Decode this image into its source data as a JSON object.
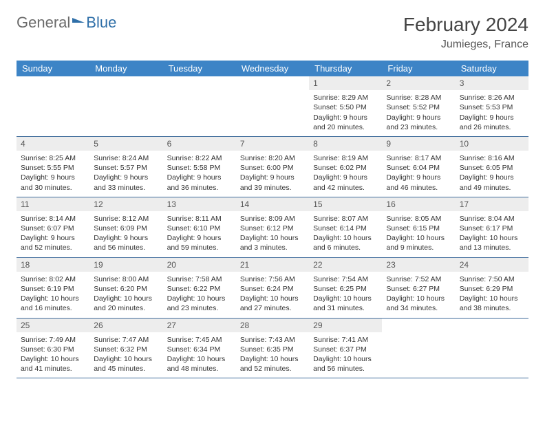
{
  "logo": {
    "part1": "General",
    "part2": "Blue"
  },
  "header": {
    "month": "February 2024",
    "location": "Jumieges, France"
  },
  "colors": {
    "header_bg": "#3d84c6",
    "header_text": "#ffffff",
    "daynum_bg": "#ededed",
    "border": "#3d6a9a",
    "title_text": "#444444",
    "body_text": "#333333"
  },
  "daynames": [
    "Sunday",
    "Monday",
    "Tuesday",
    "Wednesday",
    "Thursday",
    "Friday",
    "Saturday"
  ],
  "weeks": [
    [
      null,
      null,
      null,
      null,
      {
        "n": "1",
        "sr": "Sunrise: 8:29 AM",
        "ss": "Sunset: 5:50 PM",
        "d1": "Daylight: 9 hours",
        "d2": "and 20 minutes."
      },
      {
        "n": "2",
        "sr": "Sunrise: 8:28 AM",
        "ss": "Sunset: 5:52 PM",
        "d1": "Daylight: 9 hours",
        "d2": "and 23 minutes."
      },
      {
        "n": "3",
        "sr": "Sunrise: 8:26 AM",
        "ss": "Sunset: 5:53 PM",
        "d1": "Daylight: 9 hours",
        "d2": "and 26 minutes."
      }
    ],
    [
      {
        "n": "4",
        "sr": "Sunrise: 8:25 AM",
        "ss": "Sunset: 5:55 PM",
        "d1": "Daylight: 9 hours",
        "d2": "and 30 minutes."
      },
      {
        "n": "5",
        "sr": "Sunrise: 8:24 AM",
        "ss": "Sunset: 5:57 PM",
        "d1": "Daylight: 9 hours",
        "d2": "and 33 minutes."
      },
      {
        "n": "6",
        "sr": "Sunrise: 8:22 AM",
        "ss": "Sunset: 5:58 PM",
        "d1": "Daylight: 9 hours",
        "d2": "and 36 minutes."
      },
      {
        "n": "7",
        "sr": "Sunrise: 8:20 AM",
        "ss": "Sunset: 6:00 PM",
        "d1": "Daylight: 9 hours",
        "d2": "and 39 minutes."
      },
      {
        "n": "8",
        "sr": "Sunrise: 8:19 AM",
        "ss": "Sunset: 6:02 PM",
        "d1": "Daylight: 9 hours",
        "d2": "and 42 minutes."
      },
      {
        "n": "9",
        "sr": "Sunrise: 8:17 AM",
        "ss": "Sunset: 6:04 PM",
        "d1": "Daylight: 9 hours",
        "d2": "and 46 minutes."
      },
      {
        "n": "10",
        "sr": "Sunrise: 8:16 AM",
        "ss": "Sunset: 6:05 PM",
        "d1": "Daylight: 9 hours",
        "d2": "and 49 minutes."
      }
    ],
    [
      {
        "n": "11",
        "sr": "Sunrise: 8:14 AM",
        "ss": "Sunset: 6:07 PM",
        "d1": "Daylight: 9 hours",
        "d2": "and 52 minutes."
      },
      {
        "n": "12",
        "sr": "Sunrise: 8:12 AM",
        "ss": "Sunset: 6:09 PM",
        "d1": "Daylight: 9 hours",
        "d2": "and 56 minutes."
      },
      {
        "n": "13",
        "sr": "Sunrise: 8:11 AM",
        "ss": "Sunset: 6:10 PM",
        "d1": "Daylight: 9 hours",
        "d2": "and 59 minutes."
      },
      {
        "n": "14",
        "sr": "Sunrise: 8:09 AM",
        "ss": "Sunset: 6:12 PM",
        "d1": "Daylight: 10 hours",
        "d2": "and 3 minutes."
      },
      {
        "n": "15",
        "sr": "Sunrise: 8:07 AM",
        "ss": "Sunset: 6:14 PM",
        "d1": "Daylight: 10 hours",
        "d2": "and 6 minutes."
      },
      {
        "n": "16",
        "sr": "Sunrise: 8:05 AM",
        "ss": "Sunset: 6:15 PM",
        "d1": "Daylight: 10 hours",
        "d2": "and 9 minutes."
      },
      {
        "n": "17",
        "sr": "Sunrise: 8:04 AM",
        "ss": "Sunset: 6:17 PM",
        "d1": "Daylight: 10 hours",
        "d2": "and 13 minutes."
      }
    ],
    [
      {
        "n": "18",
        "sr": "Sunrise: 8:02 AM",
        "ss": "Sunset: 6:19 PM",
        "d1": "Daylight: 10 hours",
        "d2": "and 16 minutes."
      },
      {
        "n": "19",
        "sr": "Sunrise: 8:00 AM",
        "ss": "Sunset: 6:20 PM",
        "d1": "Daylight: 10 hours",
        "d2": "and 20 minutes."
      },
      {
        "n": "20",
        "sr": "Sunrise: 7:58 AM",
        "ss": "Sunset: 6:22 PM",
        "d1": "Daylight: 10 hours",
        "d2": "and 23 minutes."
      },
      {
        "n": "21",
        "sr": "Sunrise: 7:56 AM",
        "ss": "Sunset: 6:24 PM",
        "d1": "Daylight: 10 hours",
        "d2": "and 27 minutes."
      },
      {
        "n": "22",
        "sr": "Sunrise: 7:54 AM",
        "ss": "Sunset: 6:25 PM",
        "d1": "Daylight: 10 hours",
        "d2": "and 31 minutes."
      },
      {
        "n": "23",
        "sr": "Sunrise: 7:52 AM",
        "ss": "Sunset: 6:27 PM",
        "d1": "Daylight: 10 hours",
        "d2": "and 34 minutes."
      },
      {
        "n": "24",
        "sr": "Sunrise: 7:50 AM",
        "ss": "Sunset: 6:29 PM",
        "d1": "Daylight: 10 hours",
        "d2": "and 38 minutes."
      }
    ],
    [
      {
        "n": "25",
        "sr": "Sunrise: 7:49 AM",
        "ss": "Sunset: 6:30 PM",
        "d1": "Daylight: 10 hours",
        "d2": "and 41 minutes."
      },
      {
        "n": "26",
        "sr": "Sunrise: 7:47 AM",
        "ss": "Sunset: 6:32 PM",
        "d1": "Daylight: 10 hours",
        "d2": "and 45 minutes."
      },
      {
        "n": "27",
        "sr": "Sunrise: 7:45 AM",
        "ss": "Sunset: 6:34 PM",
        "d1": "Daylight: 10 hours",
        "d2": "and 48 minutes."
      },
      {
        "n": "28",
        "sr": "Sunrise: 7:43 AM",
        "ss": "Sunset: 6:35 PM",
        "d1": "Daylight: 10 hours",
        "d2": "and 52 minutes."
      },
      {
        "n": "29",
        "sr": "Sunrise: 7:41 AM",
        "ss": "Sunset: 6:37 PM",
        "d1": "Daylight: 10 hours",
        "d2": "and 56 minutes."
      },
      null,
      null
    ]
  ]
}
